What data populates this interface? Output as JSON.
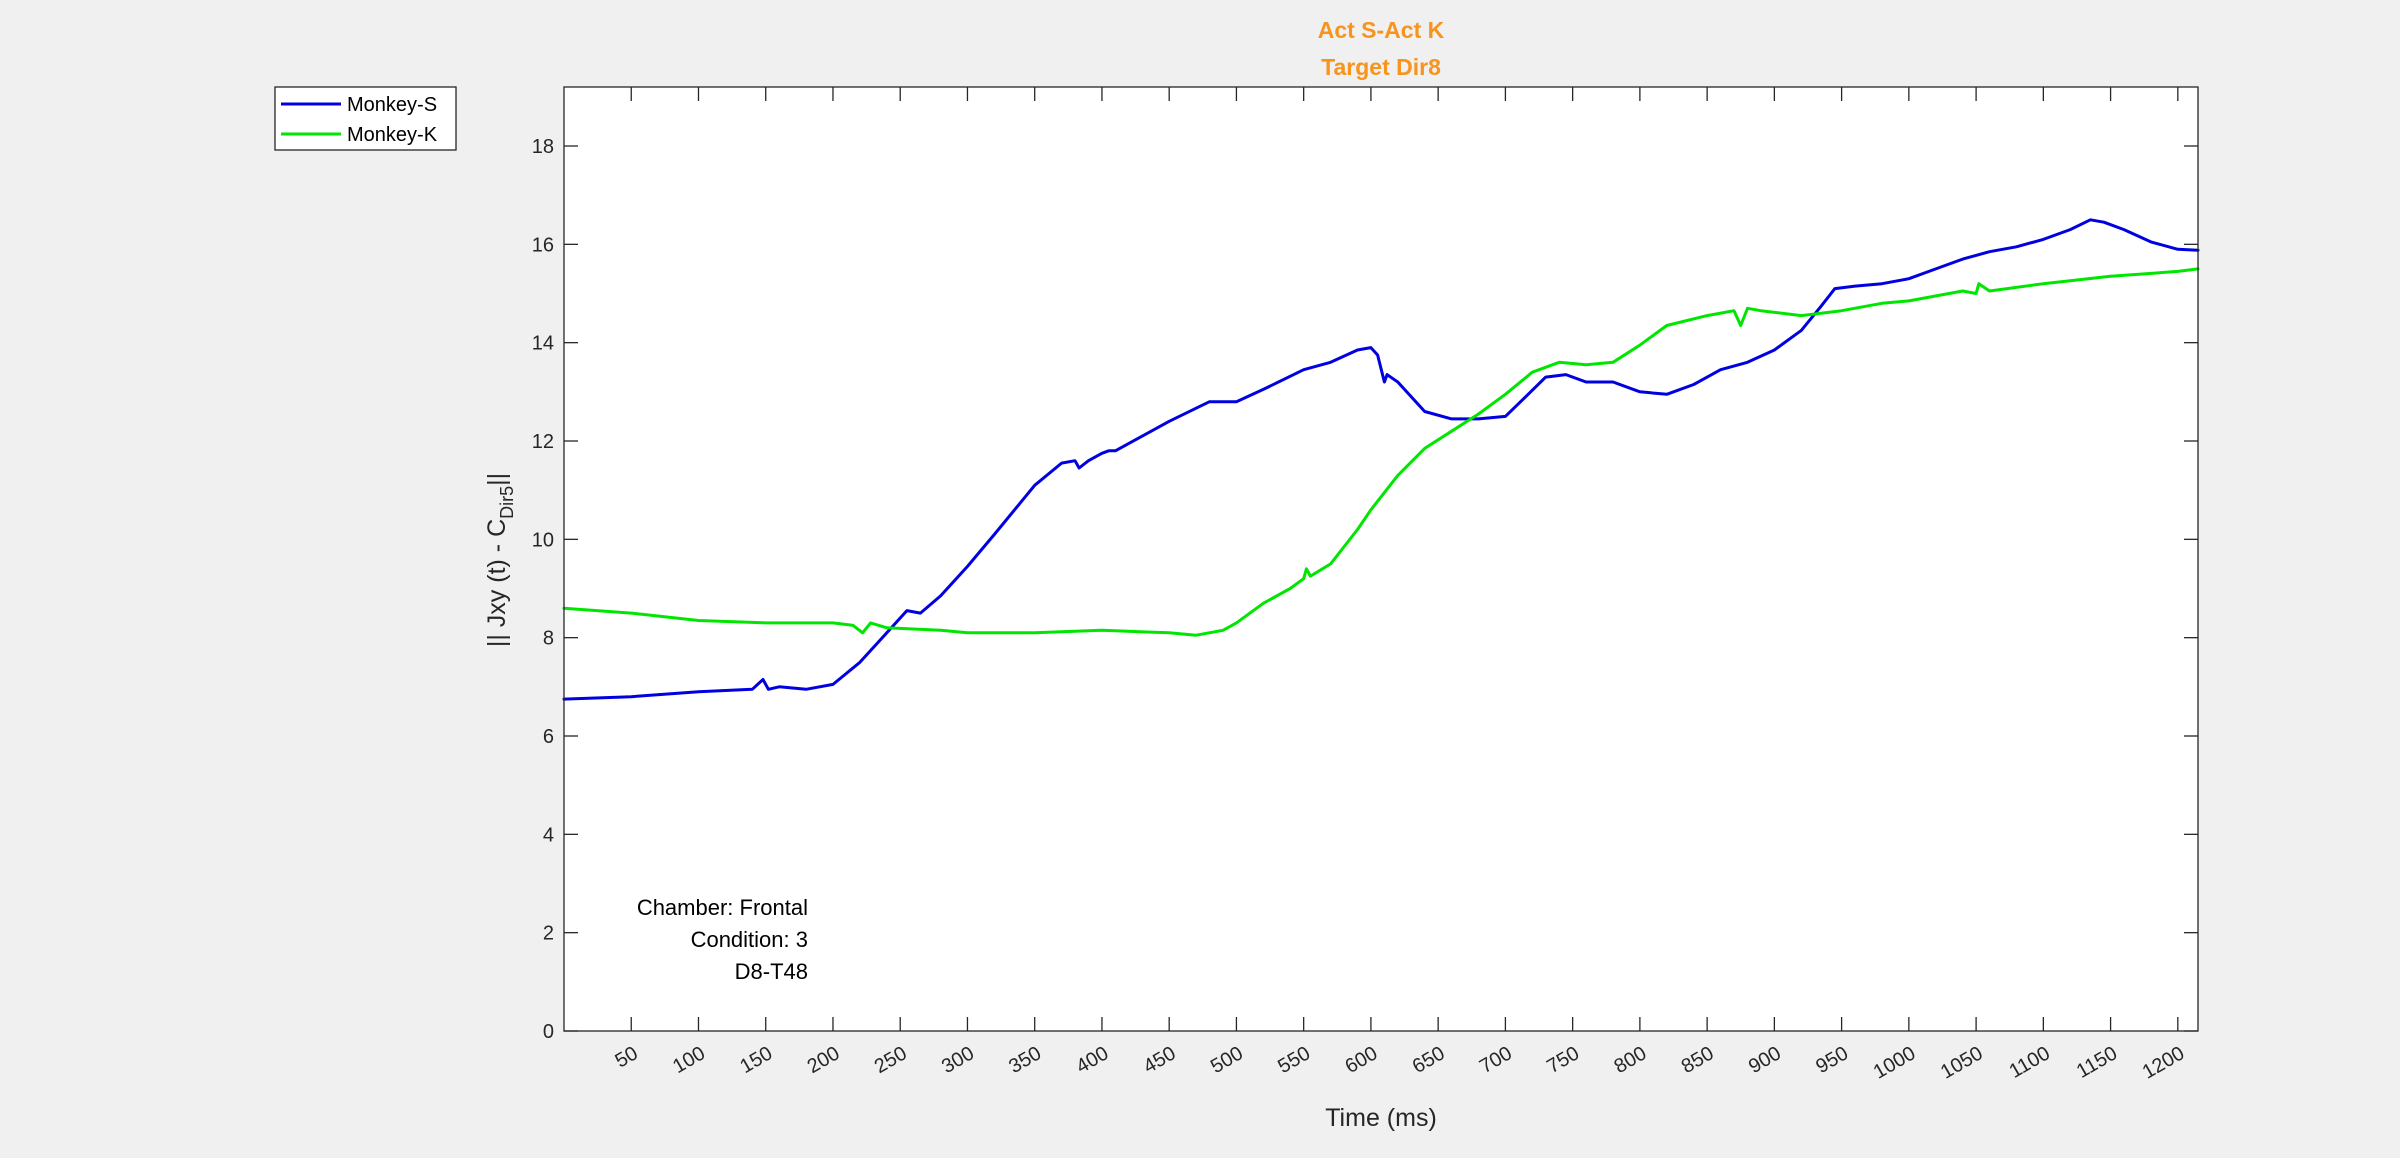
{
  "chart_data": {
    "type": "line",
    "title": "Act S-Act K",
    "subtitle": "Target Dir8",
    "title_color": "#F7941D",
    "xlabel": "Time (ms)",
    "ylabel_main": "|| Jxy (t) - C",
    "ylabel_sub": "Dir5",
    "ylabel_end": "||",
    "xlim": [
      0,
      1215
    ],
    "ylim": [
      0,
      19.2
    ],
    "x_ticks": [
      50,
      100,
      150,
      200,
      250,
      300,
      350,
      400,
      450,
      500,
      550,
      600,
      650,
      700,
      750,
      800,
      850,
      900,
      950,
      1000,
      1050,
      1100,
      1150,
      1200
    ],
    "y_ticks": [
      0,
      2,
      4,
      6,
      8,
      10,
      12,
      14,
      16,
      18
    ],
    "grid": false,
    "legend_position": "outside-top-left",
    "annotations": [
      "Chamber: Frontal",
      "Condition: 3",
      "D8-T48"
    ],
    "series": [
      {
        "name": "Monkey-S",
        "color": "#0000E0",
        "x": [
          0,
          50,
          100,
          140,
          148,
          152,
          160,
          180,
          200,
          220,
          240,
          255,
          265,
          280,
          300,
          320,
          350,
          370,
          380,
          383,
          390,
          400,
          405,
          410,
          430,
          450,
          480,
          500,
          520,
          550,
          570,
          590,
          600,
          605,
          610,
          612,
          620,
          640,
          660,
          680,
          700,
          715,
          730,
          745,
          760,
          780,
          800,
          820,
          840,
          860,
          880,
          900,
          920,
          935,
          945,
          960,
          980,
          1000,
          1020,
          1040,
          1060,
          1080,
          1100,
          1120,
          1135,
          1145,
          1160,
          1180,
          1200,
          1215
        ],
        "y": [
          6.75,
          6.8,
          6.9,
          6.95,
          7.15,
          6.95,
          7.0,
          6.95,
          7.05,
          7.5,
          8.1,
          8.55,
          8.5,
          8.85,
          9.45,
          10.1,
          11.1,
          11.55,
          11.6,
          11.45,
          11.6,
          11.75,
          11.8,
          11.8,
          12.1,
          12.4,
          12.8,
          12.8,
          13.05,
          13.45,
          13.6,
          13.85,
          13.9,
          13.75,
          13.2,
          13.35,
          13.2,
          12.6,
          12.45,
          12.45,
          12.5,
          12.9,
          13.3,
          13.35,
          13.2,
          13.2,
          13.0,
          12.95,
          13.15,
          13.45,
          13.6,
          13.85,
          14.25,
          14.75,
          15.1,
          15.15,
          15.2,
          15.3,
          15.5,
          15.7,
          15.85,
          15.95,
          16.1,
          16.3,
          16.5,
          16.45,
          16.3,
          16.05,
          15.9,
          15.88
        ]
      },
      {
        "name": "Monkey-K",
        "color": "#00E600",
        "x": [
          0,
          50,
          100,
          150,
          200,
          215,
          222,
          228,
          240,
          280,
          300,
          350,
          400,
          450,
          470,
          490,
          500,
          520,
          540,
          550,
          552,
          555,
          570,
          590,
          600,
          620,
          640,
          660,
          680,
          700,
          720,
          740,
          760,
          780,
          800,
          820,
          850,
          870,
          875,
          880,
          890,
          920,
          950,
          980,
          1000,
          1040,
          1050,
          1052,
          1060,
          1100,
          1150,
          1200,
          1215
        ],
        "y": [
          8.6,
          8.5,
          8.35,
          8.3,
          8.3,
          8.25,
          8.1,
          8.3,
          8.2,
          8.15,
          8.1,
          8.1,
          8.15,
          8.1,
          8.05,
          8.15,
          8.3,
          8.7,
          9.0,
          9.2,
          9.4,
          9.25,
          9.5,
          10.2,
          10.6,
          11.3,
          11.85,
          12.2,
          12.55,
          12.95,
          13.4,
          13.6,
          13.55,
          13.6,
          13.95,
          14.35,
          14.55,
          14.65,
          14.35,
          14.7,
          14.65,
          14.55,
          14.65,
          14.8,
          14.85,
          15.05,
          15.0,
          15.2,
          15.05,
          15.2,
          15.35,
          15.45,
          15.5
        ]
      }
    ]
  }
}
